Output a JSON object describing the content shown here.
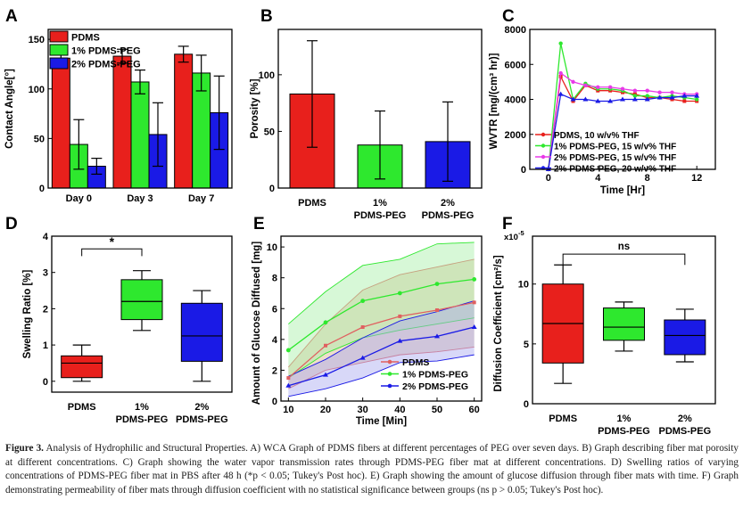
{
  "caption": {
    "label": "Figure 3.",
    "text": "Analysis of Hydrophilic and Structural Properties. A) WCA Graph of PDMS fibers at different percentages of PEG over seven days. B) Graph describing fiber mat porosity at different concentrations. C) Graph showing the water vapor transmission rates through PDMS-PEG fiber mat at different concentrations. D) Swelling ratios of varying concentrations of PDMS-PEG fiber mat in PBS after 48 h (*p < 0.05; Tukey's Post hoc). E) Graph showing the amount of glucose diffusion through fiber mats with time. F) Graph demonstrating permeability of fiber mats through diffusion coefficient with no statistical significance between groups (ns p > 0.05; Tukey's Post hoc)."
  },
  "colors": {
    "red": "#e8201c",
    "green": "#2ee82e",
    "blue": "#1a1ae6",
    "magenta": "#e83ae8",
    "darkred": "#c04040"
  },
  "chart_data": [
    {
      "panel": "A",
      "type": "bar",
      "ylabel": "Contact Angle[°]",
      "ylim": [
        0,
        160
      ],
      "yticks": [
        0,
        50,
        100,
        150
      ],
      "categories": [
        "Day 0",
        "Day 3",
        "Day 7"
      ],
      "series": [
        {
          "name": "PDMS",
          "color": "#e8201c",
          "values": [
            131,
            133,
            135
          ],
          "errors": [
            7,
            7,
            8
          ]
        },
        {
          "name": "1% PDMS-PEG",
          "color": "#2ee82e",
          "values": [
            44,
            107,
            116
          ],
          "errors": [
            25,
            12,
            18
          ]
        },
        {
          "name": "2% PDMS-PEG",
          "color": "#1a1ae6",
          "values": [
            22,
            54,
            76
          ],
          "errors": [
            8,
            32,
            37
          ]
        }
      ]
    },
    {
      "panel": "B",
      "type": "bar",
      "ylabel": "Porosity [%]",
      "ylim": [
        0,
        140
      ],
      "yticks": [
        0,
        50,
        100
      ],
      "categories": [
        "PDMS",
        "1%\nPDMS-PEG",
        "2%\nPDMS-PEG"
      ],
      "values": [
        83,
        38,
        41
      ],
      "errors": [
        47,
        30,
        35
      ],
      "colors": [
        "#e8201c",
        "#2ee82e",
        "#1a1ae6"
      ]
    },
    {
      "panel": "C",
      "type": "line",
      "ylabel": "WVTR [mg/(cm³ hr)]",
      "xlabel": "Time [Hr]",
      "xlim": [
        -1.5,
        13.5
      ],
      "ylim": [
        0,
        8000
      ],
      "xticks": [
        0,
        4,
        8,
        12
      ],
      "yticks": [
        0,
        2000,
        4000,
        6000,
        8000
      ],
      "series": [
        {
          "name": "PDMS, 10 w/v% THF",
          "color": "#e8201c",
          "x": [
            0,
            1,
            2,
            3,
            4,
            5,
            6,
            7,
            8,
            9,
            10,
            11,
            12
          ],
          "y": [
            0,
            5300,
            3900,
            4800,
            4500,
            4500,
            4400,
            4300,
            4100,
            4100,
            4000,
            3900,
            3900
          ]
        },
        {
          "name": "1% PDMS-PEG, 15 w/v% THF",
          "color": "#2ee82e",
          "x": [
            0,
            1,
            2,
            3,
            4,
            5,
            6,
            7,
            8,
            9,
            10,
            11,
            12
          ],
          "y": [
            0,
            7200,
            4000,
            4900,
            4600,
            4600,
            4500,
            4200,
            4200,
            4100,
            4200,
            4100,
            4000
          ]
        },
        {
          "name": "2% PDMS-PEG, 15 w/v% THF",
          "color": "#e83ae8",
          "x": [
            0,
            1,
            2,
            3,
            4,
            5,
            6,
            7,
            8,
            9,
            10,
            11,
            12
          ],
          "y": [
            0,
            5500,
            5000,
            4800,
            4700,
            4700,
            4600,
            4500,
            4500,
            4400,
            4400,
            4300,
            4300
          ]
        },
        {
          "name": "2% PDMS-PEG, 20 w/v% THF",
          "color": "#1a1ae6",
          "x": [
            0,
            1,
            2,
            3,
            4,
            5,
            6,
            7,
            8,
            9,
            10,
            11,
            12
          ],
          "y": [
            0,
            4300,
            4000,
            4000,
            3900,
            3900,
            4000,
            4000,
            4000,
            4100,
            4100,
            4200,
            4200
          ]
        }
      ]
    },
    {
      "panel": "D",
      "type": "box",
      "ylabel": "Swelling Ratio [%]",
      "ylim": [
        -0.3,
        4
      ],
      "yticks": [
        0,
        1,
        2,
        3,
        4
      ],
      "categories": [
        "PDMS",
        "1%\nPDMS-PEG",
        "2%\nPDMS-PEG"
      ],
      "boxes": [
        {
          "min": 0.0,
          "q1": 0.1,
          "median": 0.5,
          "q3": 0.7,
          "max": 1.0,
          "color": "#e8201c"
        },
        {
          "min": 1.4,
          "q1": 1.7,
          "median": 2.2,
          "q3": 2.8,
          "max": 3.05,
          "color": "#2ee82e"
        },
        {
          "min": 0.0,
          "q1": 0.55,
          "median": 1.25,
          "q3": 2.15,
          "max": 2.5,
          "color": "#1a1ae6"
        }
      ],
      "annotation": "*"
    },
    {
      "panel": "E",
      "type": "area",
      "ylabel": "Amount of Glucose Diffused [mg]",
      "xlabel": "Time [Min]",
      "xlim": [
        8,
        62
      ],
      "ylim": [
        0,
        10.7
      ],
      "xticks": [
        10,
        20,
        30,
        40,
        50,
        60
      ],
      "yticks": [
        0,
        2,
        4,
        6,
        8,
        10
      ],
      "series": [
        {
          "name": "PDMS",
          "color": "#e06060",
          "fill": "#d9b48a",
          "x": [
            10,
            20,
            30,
            40,
            50,
            60
          ],
          "mean": [
            1.5,
            3.6,
            4.8,
            5.5,
            5.9,
            6.4
          ],
          "upper": [
            2.2,
            5.0,
            7.2,
            8.2,
            8.7,
            9.2
          ],
          "lower": [
            0.8,
            2.0,
            2.5,
            3.0,
            3.2,
            3.5
          ]
        },
        {
          "name": "1% PDMS-PEG",
          "color": "#2ee82e",
          "fill": "#a6f0a6",
          "x": [
            10,
            20,
            30,
            40,
            50,
            60
          ],
          "mean": [
            3.3,
            5.1,
            6.5,
            7.0,
            7.6,
            7.9
          ],
          "upper": [
            5.0,
            7.1,
            8.8,
            9.2,
            10.2,
            10.3
          ],
          "lower": [
            1.5,
            3.1,
            4.1,
            4.6,
            5.0,
            5.4
          ]
        },
        {
          "name": "2% PDMS-PEG",
          "color": "#1a1ae6",
          "fill": "#a8a8f0",
          "x": [
            10,
            20,
            30,
            40,
            50,
            60
          ],
          "mean": [
            1.0,
            1.7,
            2.8,
            3.9,
            4.2,
            4.8
          ],
          "upper": [
            1.6,
            2.7,
            4.1,
            5.2,
            5.8,
            6.5
          ],
          "lower": [
            0.3,
            0.8,
            1.5,
            2.5,
            2.6,
            3.0
          ]
        }
      ]
    },
    {
      "panel": "F",
      "type": "box",
      "ylabel": "Diffusion Coefficient [cm²/s]",
      "ylim": [
        0,
        14
      ],
      "yticks": [
        0,
        5,
        10
      ],
      "yscale_label": "x10",
      "yscale_exp": "-5",
      "categories": [
        "PDMS",
        "1%\nPDMS-PEG",
        "2%\nPDMS-PEG"
      ],
      "boxes": [
        {
          "min": 1.7,
          "q1": 3.4,
          "median": 6.7,
          "q3": 10.0,
          "max": 11.6,
          "color": "#e8201c"
        },
        {
          "min": 4.4,
          "q1": 5.3,
          "median": 6.4,
          "q3": 8.0,
          "max": 8.5,
          "color": "#2ee82e"
        },
        {
          "min": 3.5,
          "q1": 4.1,
          "median": 5.7,
          "q3": 7.0,
          "max": 7.9,
          "color": "#1a1ae6"
        }
      ],
      "annotation": "ns"
    }
  ],
  "panel_labels": [
    "A",
    "B",
    "C",
    "D",
    "E",
    "F"
  ]
}
